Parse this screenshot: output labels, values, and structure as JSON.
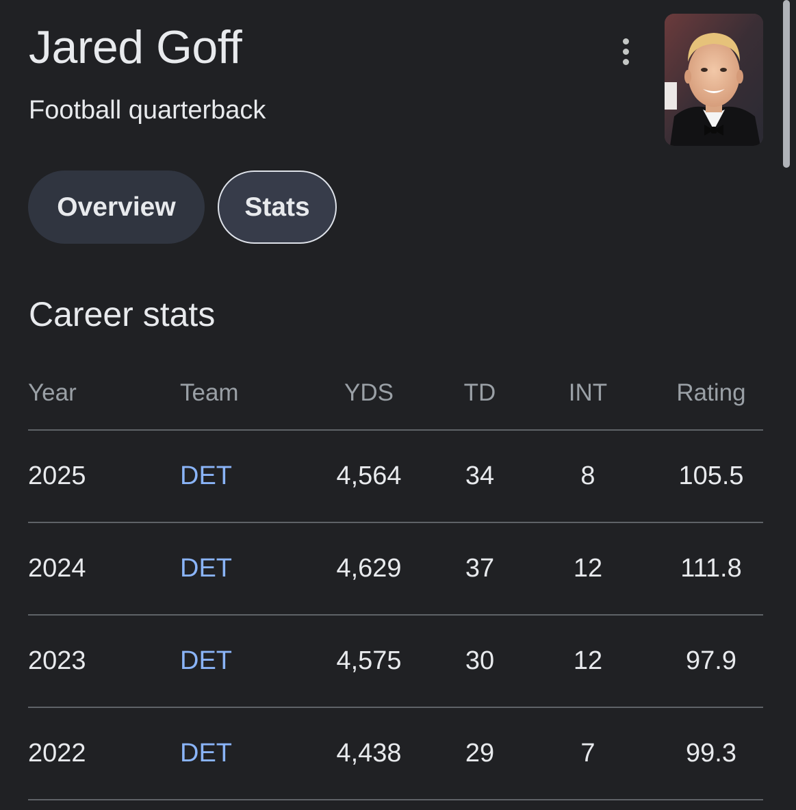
{
  "header": {
    "title": "Jared Goff",
    "subtitle": "Football quarterback",
    "more_icon": "more-vertical-icon"
  },
  "tabs": [
    {
      "label": "Overview",
      "selected": false
    },
    {
      "label": "Stats",
      "selected": true
    }
  ],
  "career_stats": {
    "heading": "Career stats",
    "columns": [
      "Year",
      "Team",
      "YDS",
      "TD",
      "INT",
      "Rating"
    ],
    "rows": [
      {
        "year": "2025",
        "team": "DET",
        "yds": "4,564",
        "td": "34",
        "int": "8",
        "rating": "105.5"
      },
      {
        "year": "2024",
        "team": "DET",
        "yds": "4,629",
        "td": "37",
        "int": "12",
        "rating": "111.8"
      },
      {
        "year": "2023",
        "team": "DET",
        "yds": "4,575",
        "td": "30",
        "int": "12",
        "rating": "97.9"
      },
      {
        "year": "2022",
        "team": "DET",
        "yds": "4,438",
        "td": "29",
        "int": "7",
        "rating": "99.3"
      }
    ]
  },
  "colors": {
    "background": "#202124",
    "text": "#e8eaed",
    "muted": "#9aa0a6",
    "link": "#8ab4f8",
    "divider": "#5f6368"
  }
}
